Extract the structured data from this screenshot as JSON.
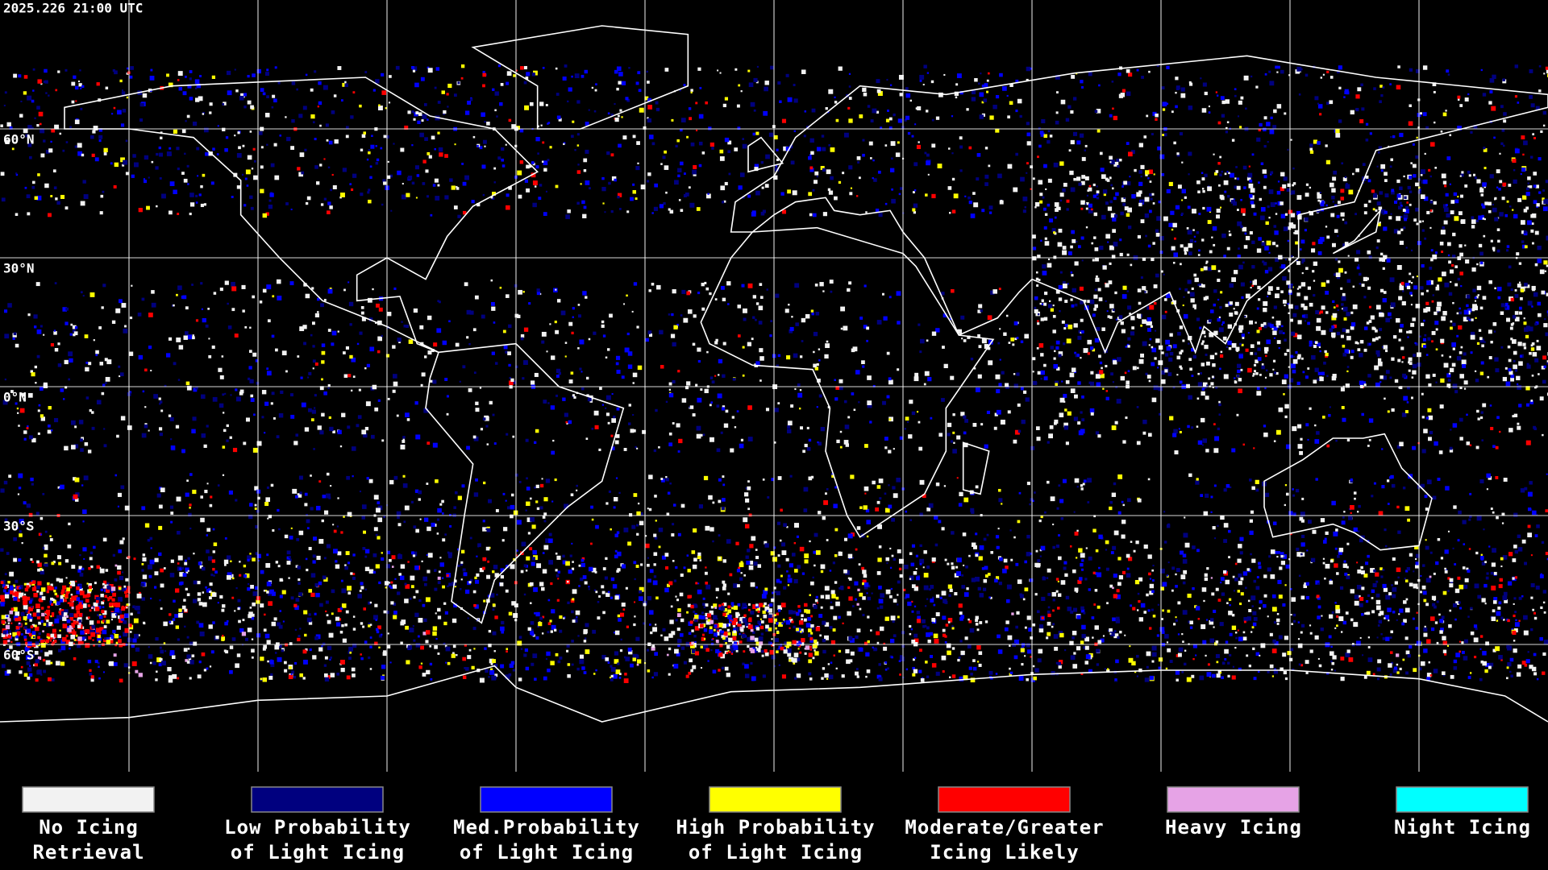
{
  "header": {
    "timestamp": "2025.226 21:00 UTC"
  },
  "map": {
    "lat_labels": [
      "60°N",
      "30°N",
      "0°N",
      "30°S",
      "60°S"
    ]
  },
  "legend": {
    "items": [
      {
        "color": "#f2f2f2",
        "label": [
          "No Icing",
          "Retrieval"
        ]
      },
      {
        "color": "#00007f",
        "label": [
          "Low Probability",
          "of Light Icing"
        ]
      },
      {
        "color": "#0000ff",
        "label": [
          "Med.Probability",
          "of Light Icing"
        ]
      },
      {
        "color": "#ffff00",
        "label": [
          "High Probability",
          "of Light Icing"
        ]
      },
      {
        "color": "#ff0000",
        "label": [
          "Moderate/Greater",
          "Icing Likely"
        ]
      },
      {
        "color": "#e6a3e6",
        "label": [
          "Heavy Icing"
        ]
      },
      {
        "color": "#00ffff",
        "label": [
          "Night Icing"
        ]
      }
    ]
  }
}
